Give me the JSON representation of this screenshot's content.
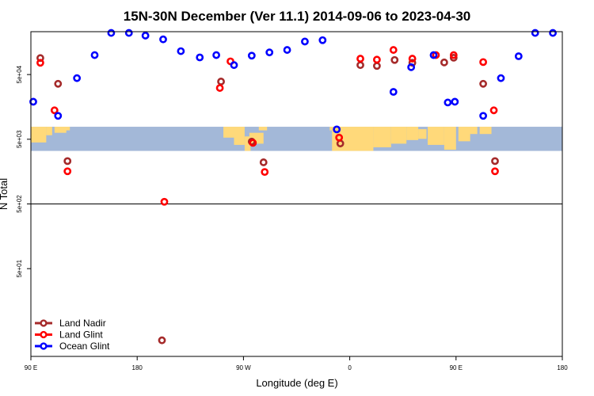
{
  "chart_data": {
    "type": "scatter",
    "title": "15N-30N December (Ver 11.1)   2014-09-06 to 2023-04-30",
    "xlabel": "Longitude (deg E)",
    "ylabel": "N Total",
    "xlim": [
      90,
      540
    ],
    "ylog": true,
    "ylim": [
      2.2,
      230000
    ],
    "x_ticks": [
      {
        "value": 90,
        "label": "90 E"
      },
      {
        "value": 180,
        "label": "180"
      },
      {
        "value": 270,
        "label": "90 W"
      },
      {
        "value": 360,
        "label": "0"
      },
      {
        "value": 450,
        "label": "90 E"
      },
      {
        "value": 540,
        "label": "180"
      }
    ],
    "y_ticks": [
      {
        "value": 50,
        "label": "5e+01"
      },
      {
        "value": 500,
        "label": "5e+02"
      },
      {
        "value": 5000,
        "label": "5e+03"
      },
      {
        "value": 50000,
        "label": "5e+04"
      }
    ],
    "reference_line_y": 500,
    "map_band": {
      "y_top": 7800,
      "y_bottom": 3300
    },
    "legend_position": "bottom-left",
    "series": [
      {
        "name": "Land Nadir",
        "color": "#a52a2a",
        "points": [
          [
            98,
            90000
          ],
          [
            113,
            36000
          ],
          [
            121,
            2300
          ],
          [
            201,
            3.9
          ],
          [
            251,
            39000
          ],
          [
            277,
            4600
          ],
          [
            287,
            2200
          ],
          [
            352,
            4300
          ],
          [
            369,
            70000
          ],
          [
            383,
            68000
          ],
          [
            398,
            84000
          ],
          [
            413,
            76000
          ],
          [
            440,
            77000
          ],
          [
            448,
            91000
          ],
          [
            473,
            36000
          ],
          [
            483,
            2300
          ]
        ]
      },
      {
        "name": "Land Glint",
        "color": "#ff0000",
        "points": [
          [
            98,
            76000
          ],
          [
            110,
            14000
          ],
          [
            121,
            1600
          ],
          [
            203,
            540
          ],
          [
            250,
            31000
          ],
          [
            259,
            80000
          ],
          [
            278,
            4400
          ],
          [
            288,
            1560
          ],
          [
            351,
            5300
          ],
          [
            369,
            88000
          ],
          [
            383,
            85000
          ],
          [
            397,
            120000
          ],
          [
            413,
            88000
          ],
          [
            433,
            100000
          ],
          [
            448,
            100000
          ],
          [
            473,
            78000
          ],
          [
            482,
            14000
          ],
          [
            483,
            1600
          ]
        ]
      },
      {
        "name": "Ocean Glint",
        "color": "#0000ff",
        "points": [
          [
            92,
            19000
          ],
          [
            113,
            11500
          ],
          [
            129,
            44000
          ],
          [
            144,
            100000
          ],
          [
            158,
            220000
          ],
          [
            173,
            220000
          ],
          [
            187,
            200000
          ],
          [
            202,
            175000
          ],
          [
            217,
            115000
          ],
          [
            233,
            92000
          ],
          [
            247,
            100000
          ],
          [
            262,
            70000
          ],
          [
            277,
            98000
          ],
          [
            292,
            110000
          ],
          [
            307,
            120000
          ],
          [
            322,
            162000
          ],
          [
            337,
            170000
          ],
          [
            349,
            7100
          ],
          [
            397,
            27000
          ],
          [
            412,
            65000
          ],
          [
            431,
            100000
          ],
          [
            443,
            18500
          ],
          [
            449,
            19000
          ],
          [
            473,
            11500
          ],
          [
            488,
            44000
          ],
          [
            503,
            96000
          ],
          [
            517,
            220000
          ],
          [
            532,
            220000
          ]
        ]
      }
    ]
  }
}
